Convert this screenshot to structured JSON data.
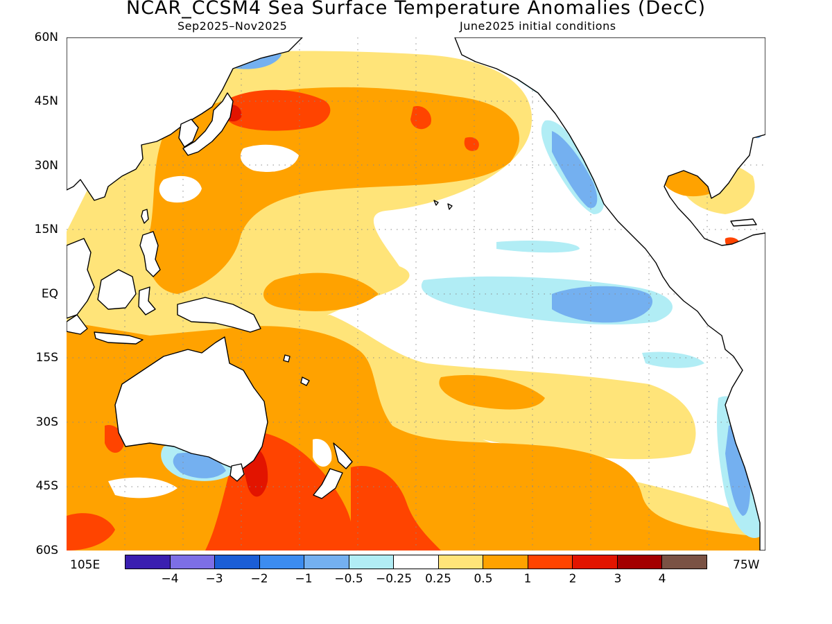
{
  "title": "NCAR_CCSM4 Sea Surface Temperature Anomalies (DecC)",
  "subtitle_left": "Sep2025–Nov2025",
  "subtitle_right": "June2025 initial conditions",
  "lat_labels": [
    "60N",
    "45N",
    "30N",
    "15N",
    "EQ",
    "15S",
    "30S",
    "45S",
    "60S"
  ],
  "lon_labels": {
    "left": "105E",
    "right": "75W"
  },
  "colorbar": {
    "colors": [
      "#3a1fb0",
      "#7d6fe6",
      "#1b5ed6",
      "#3c8cf0",
      "#74b0f0",
      "#b1edf5",
      "#ffffff",
      "#ffe479",
      "#ffa200",
      "#ff4400",
      "#e21400",
      "#a30000",
      "#7a5244"
    ],
    "labels": [
      "−4",
      "−3",
      "−2",
      "−1",
      "−0.5",
      "−0.25",
      "0.25",
      "0.5",
      "1",
      "2",
      "3",
      "4"
    ]
  },
  "legend_colors": {
    "weak_warm": "#ffe479",
    "warm": "#ffa200",
    "strong_warm": "#ff4400",
    "very_warm": "#e21400",
    "extreme_warm": "#a30000",
    "weak_cool": "#b1edf5",
    "cool": "#74b0f0"
  }
}
